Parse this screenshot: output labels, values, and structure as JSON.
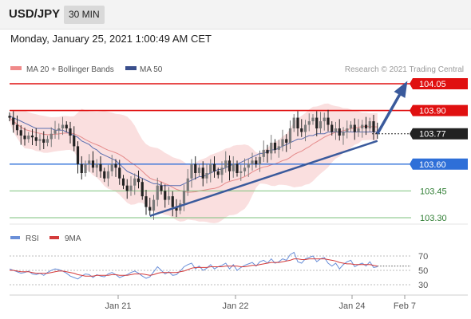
{
  "header": {
    "symbol": "USD/JPY",
    "interval": "30 MIN"
  },
  "datetime": "Monday, January 25, 2021 1:00:49 AM CET",
  "legend": {
    "bollinger_label": "MA 20 + Bollinger Bands",
    "ma50_label": "MA 50",
    "credit": "Research © 2021 Trading Central"
  },
  "colors": {
    "resistance": "#e01010",
    "support": "#2e6fd8",
    "target_support": "#7cc27c",
    "trend": "#3a5a9c",
    "price_line": "#222222",
    "candle_up": "#7a7a7a",
    "candle_down": "#222222",
    "bollinger_fill": "#f8d4d4",
    "ma20": "#e58a8a",
    "ma50": "#5b6fb0",
    "rsi": "#6a8fd8",
    "rsi_ma": "#d43b3b"
  },
  "chart_data": [
    {
      "type": "candlestick",
      "ylim": [
        103.25,
        104.1
      ],
      "x_ticks": [
        "Jan 21",
        "Jan 22",
        "Jan 24",
        "Feb 7"
      ],
      "levels": [
        {
          "name": "resistance-2",
          "value": 104.05,
          "label": "104.05",
          "style": "resistance"
        },
        {
          "name": "resistance-1",
          "value": 103.9,
          "label": "103.90",
          "style": "resistance"
        },
        {
          "name": "last-price",
          "value": 103.77,
          "label": "103.77",
          "style": "price"
        },
        {
          "name": "pivot",
          "value": 103.6,
          "label": "103.60",
          "style": "support"
        },
        {
          "name": "support-1",
          "value": 103.45,
          "label": "103.45",
          "style": "target"
        },
        {
          "name": "support-2",
          "value": 103.3,
          "label": "103.30",
          "style": "target"
        }
      ],
      "series": [
        {
          "name": "MA 20 + Bollinger Bands",
          "kind": "band"
        },
        {
          "name": "MA 50",
          "kind": "line"
        }
      ],
      "closes": [
        103.86,
        103.82,
        103.79,
        103.76,
        103.74,
        103.76,
        103.75,
        103.73,
        103.74,
        103.72,
        103.74,
        103.77,
        103.79,
        103.8,
        103.82,
        103.8,
        103.76,
        103.7,
        103.6,
        103.55,
        103.6,
        103.62,
        103.58,
        103.6,
        103.56,
        103.52,
        103.56,
        103.6,
        103.58,
        103.52,
        103.48,
        103.45,
        103.48,
        103.52,
        103.5,
        103.42,
        103.36,
        103.34,
        103.4,
        103.48,
        103.45,
        103.4,
        103.42,
        103.36,
        103.34,
        103.38,
        103.45,
        103.52,
        103.6,
        103.55,
        103.58,
        103.52,
        103.55,
        103.6,
        103.56,
        103.54,
        103.58,
        103.62,
        103.56,
        103.6,
        103.55,
        103.56,
        103.58,
        103.6,
        103.62,
        103.6,
        103.64,
        103.68,
        103.66,
        103.72,
        103.68,
        103.7,
        103.74,
        103.72,
        103.8,
        103.86,
        103.8,
        103.78,
        103.82,
        103.84,
        103.86,
        103.8,
        103.84,
        103.86,
        103.82,
        103.78,
        103.8,
        103.76,
        103.78,
        103.8,
        103.82,
        103.78,
        103.8,
        103.82,
        103.8,
        103.84,
        103.78,
        103.77
      ],
      "ma50": [
        103.87,
        103.86,
        103.85,
        103.84,
        103.83,
        103.82,
        103.81,
        103.8,
        103.8,
        103.8,
        103.8,
        103.8,
        103.79,
        103.79,
        103.79,
        103.78,
        103.77,
        103.76,
        103.75,
        103.73,
        103.72,
        103.71,
        103.69,
        103.68,
        103.66,
        103.65,
        103.64,
        103.63,
        103.62,
        103.6,
        103.58,
        103.56,
        103.55,
        103.54,
        103.53,
        103.52,
        103.51,
        103.5,
        103.49,
        103.49,
        103.48,
        103.48,
        103.48,
        103.48,
        103.48,
        103.48,
        103.49,
        103.5,
        103.51,
        103.52,
        103.53,
        103.53,
        103.54,
        103.55,
        103.56,
        103.57,
        103.57,
        103.58,
        103.59,
        103.6,
        103.6,
        103.61,
        103.62,
        103.63,
        103.64,
        103.65,
        103.66,
        103.66,
        103.67,
        103.68,
        103.68,
        103.69,
        103.7,
        103.71,
        103.72,
        103.73,
        103.74,
        103.74,
        103.75,
        103.76,
        103.76,
        103.77,
        103.77,
        103.77,
        103.78,
        103.78,
        103.78,
        103.78,
        103.78,
        103.78,
        103.78,
        103.78,
        103.78,
        103.78,
        103.78,
        103.78,
        103.78,
        103.78
      ],
      "trendline": {
        "from": [
          37,
          103.31
        ],
        "to": [
          97,
          103.73
        ]
      },
      "projection": {
        "from": [
          97,
          103.77
        ],
        "to": [
          104.5,
          104.05
        ]
      }
    },
    {
      "type": "line",
      "legend": [
        "RSI",
        "9MA"
      ],
      "y_ticks": [
        70,
        50,
        30
      ],
      "ylim": [
        20,
        80
      ],
      "rsi": [
        52,
        50,
        48,
        46,
        47,
        49,
        45,
        44,
        46,
        43,
        47,
        50,
        52,
        51,
        49,
        46,
        42,
        40,
        38,
        42,
        45,
        44,
        40,
        44,
        42,
        41,
        45,
        47,
        44,
        40,
        42,
        44,
        47,
        49,
        46,
        42,
        39,
        41,
        48,
        55,
        50,
        45,
        48,
        43,
        44,
        49,
        55,
        58,
        60,
        52,
        56,
        50,
        53,
        58,
        52,
        55,
        57,
        60,
        52,
        58,
        50,
        54,
        57,
        59,
        61,
        56,
        62,
        64,
        60,
        66,
        60,
        62,
        66,
        64,
        72,
        75,
        62,
        60,
        66,
        68,
        70,
        62,
        66,
        68,
        60,
        56,
        60,
        52,
        58,
        62,
        64,
        55,
        58,
        60,
        56,
        62,
        54,
        55
      ],
      "rsi_ma": [
        50,
        50,
        49,
        48,
        48,
        48,
        47,
        46,
        46,
        46,
        46,
        47,
        48,
        49,
        49,
        48,
        47,
        46,
        44,
        43,
        42,
        42,
        42,
        43,
        43,
        43,
        43,
        44,
        44,
        43,
        43,
        43,
        44,
        45,
        45,
        45,
        44,
        43,
        44,
        46,
        47,
        47,
        47,
        47,
        47,
        48,
        49,
        51,
        53,
        54,
        54,
        54,
        54,
        55,
        55,
        55,
        55,
        56,
        56,
        56,
        56,
        55,
        55,
        56,
        57,
        57,
        58,
        59,
        60,
        61,
        61,
        61,
        62,
        63,
        64,
        66,
        66,
        65,
        65,
        66,
        66,
        66,
        66,
        66,
        65,
        64,
        63,
        61,
        60,
        59,
        59,
        58,
        58,
        58,
        58,
        58,
        57,
        56
      ]
    }
  ]
}
